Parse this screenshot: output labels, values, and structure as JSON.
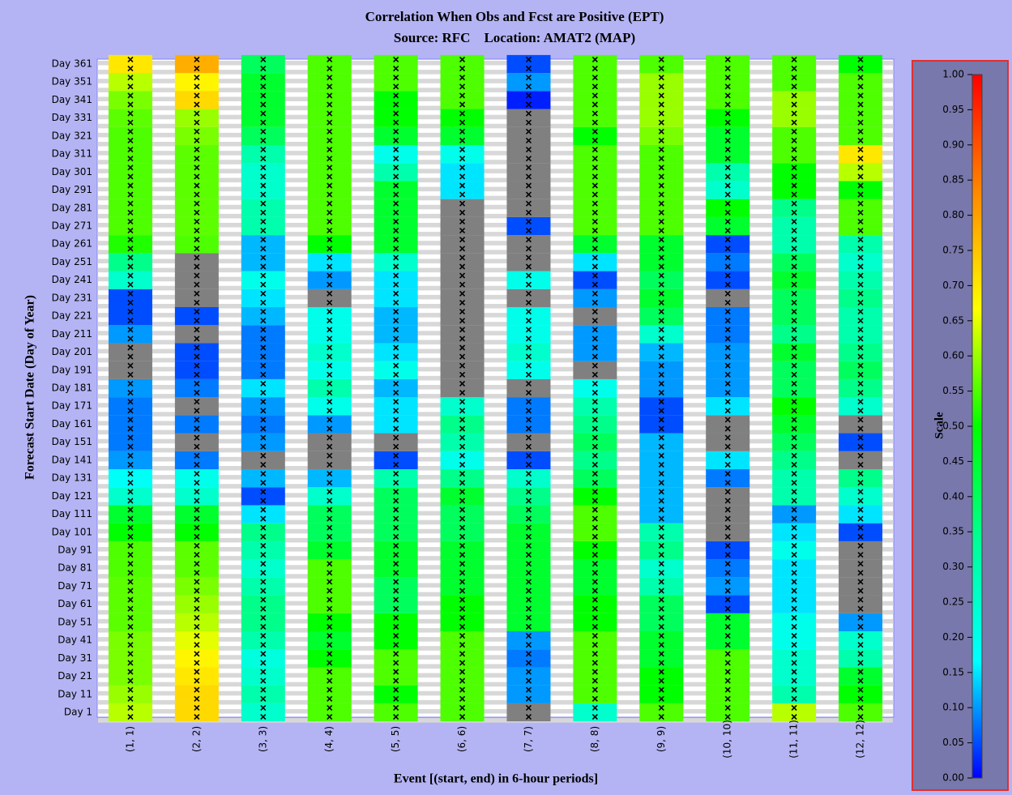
{
  "chart_data": {
    "type": "heatmap",
    "title": "Correlation When Obs and Fcst are Positive (EPT)",
    "subtitle": "Source: RFC    Location: AMAT2 (MAP)",
    "x_label": "Event [(start, end) in 6-hour periods]",
    "y_label": "Forecast Start Date (Day of Year)",
    "colorbar_label": "Scale",
    "x_categories": [
      "(1, 1)",
      "(2, 2)",
      "(3, 3)",
      "(4, 4)",
      "(5, 5)",
      "(6, 6)",
      "(7, 7)",
      "(8, 8)",
      "(9, 9)",
      "(10, 10)",
      "(11, 11)",
      "(12, 12)"
    ],
    "y_categories": [
      "Day 1",
      "Day 11",
      "Day 21",
      "Day 31",
      "Day 41",
      "Day 51",
      "Day 61",
      "Day 71",
      "Day 81",
      "Day 91",
      "Day 101",
      "Day 111",
      "Day 121",
      "Day 131",
      "Day 141",
      "Day 151",
      "Day 161",
      "Day 171",
      "Day 181",
      "Day 191",
      "Day 201",
      "Day 211",
      "Day 221",
      "Day 231",
      "Day 241",
      "Day 251",
      "Day 261",
      "Day 271",
      "Day 281",
      "Day 291",
      "Day 301",
      "Day 311",
      "Day 321",
      "Day 331",
      "Day 341",
      "Day 351",
      "Day 361"
    ],
    "values": [
      [
        0.62,
        0.6,
        0.58,
        0.58,
        0.58,
        0.56,
        0.56,
        0.56,
        0.55,
        0.55,
        0.5,
        0.45,
        0.25,
        0.18,
        0.1,
        0.08,
        0.08,
        0.08,
        0.1,
        null,
        null,
        0.1,
        0.05,
        0.05,
        0.25,
        0.35,
        0.52,
        0.55,
        0.55,
        0.55,
        0.55,
        0.55,
        0.55,
        0.56,
        0.58,
        0.62,
        0.7
      ],
      [
        0.72,
        0.72,
        0.7,
        0.68,
        0.65,
        0.62,
        0.6,
        0.58,
        0.56,
        0.56,
        0.5,
        0.45,
        0.25,
        0.2,
        0.08,
        null,
        0.08,
        null,
        0.08,
        0.05,
        0.05,
        null,
        0.05,
        null,
        null,
        null,
        0.55,
        0.56,
        0.56,
        0.56,
        0.56,
        0.56,
        0.58,
        0.6,
        0.72,
        0.68,
        0.78
      ],
      [
        0.25,
        0.3,
        0.25,
        0.22,
        0.3,
        0.35,
        0.35,
        0.3,
        0.25,
        0.3,
        0.35,
        0.15,
        0.05,
        0.12,
        null,
        0.1,
        0.08,
        0.1,
        0.15,
        0.08,
        0.08,
        0.08,
        0.12,
        0.15,
        0.2,
        0.12,
        0.12,
        0.3,
        0.3,
        0.25,
        0.25,
        0.3,
        0.4,
        0.45,
        0.45,
        0.45,
        0.4
      ],
      [
        0.55,
        0.55,
        0.55,
        0.5,
        0.45,
        0.5,
        0.55,
        0.55,
        0.55,
        0.45,
        0.4,
        0.4,
        0.25,
        0.12,
        null,
        null,
        0.1,
        0.2,
        0.3,
        0.2,
        0.25,
        0.2,
        0.2,
        null,
        0.1,
        0.15,
        0.5,
        0.55,
        0.55,
        0.55,
        0.55,
        0.55,
        0.55,
        0.55,
        0.55,
        0.55,
        0.55
      ],
      [
        0.55,
        0.5,
        0.55,
        0.55,
        0.5,
        0.5,
        0.4,
        0.4,
        0.45,
        0.45,
        0.4,
        0.4,
        0.4,
        0.3,
        0.05,
        null,
        0.15,
        0.15,
        0.12,
        0.2,
        0.15,
        0.12,
        0.12,
        0.15,
        0.15,
        0.25,
        0.45,
        0.45,
        0.45,
        0.45,
        0.3,
        0.2,
        0.45,
        0.5,
        0.5,
        0.55,
        0.55
      ],
      [
        0.55,
        0.55,
        0.55,
        0.55,
        0.55,
        0.5,
        0.5,
        0.45,
        0.45,
        0.45,
        0.4,
        0.4,
        0.45,
        0.35,
        0.2,
        0.3,
        0.35,
        0.25,
        null,
        null,
        null,
        null,
        null,
        null,
        null,
        null,
        null,
        null,
        null,
        0.15,
        0.15,
        0.2,
        0.45,
        0.5,
        0.55,
        0.55,
        0.55
      ],
      [
        null,
        0.1,
        0.1,
        0.08,
        0.1,
        0.45,
        0.45,
        0.45,
        0.45,
        0.45,
        0.45,
        0.4,
        0.35,
        0.25,
        0.05,
        null,
        0.08,
        0.08,
        null,
        0.2,
        0.25,
        0.2,
        0.2,
        null,
        0.2,
        null,
        null,
        0.05,
        null,
        null,
        null,
        null,
        null,
        null,
        0.02,
        0.1,
        0.05
      ],
      [
        0.25,
        0.55,
        0.55,
        0.55,
        0.55,
        0.5,
        0.5,
        0.45,
        0.45,
        0.5,
        0.55,
        0.55,
        0.5,
        0.4,
        0.35,
        0.4,
        0.35,
        0.3,
        0.2,
        null,
        0.1,
        0.1,
        null,
        0.1,
        0.05,
        0.15,
        0.45,
        0.55,
        0.55,
        0.55,
        0.55,
        0.55,
        0.5,
        0.55,
        0.55,
        0.55,
        0.55
      ],
      [
        0.55,
        0.5,
        0.5,
        0.45,
        0.45,
        0.4,
        0.4,
        0.3,
        0.25,
        0.35,
        0.3,
        0.12,
        0.12,
        0.12,
        0.12,
        0.12,
        0.05,
        0.05,
        0.1,
        0.1,
        0.12,
        0.25,
        0.4,
        0.45,
        0.4,
        0.45,
        0.45,
        0.55,
        0.55,
        0.55,
        0.55,
        0.55,
        0.58,
        0.6,
        0.6,
        0.6,
        0.55
      ],
      [
        0.55,
        0.55,
        0.55,
        0.55,
        0.45,
        0.45,
        0.05,
        0.1,
        0.08,
        0.05,
        null,
        null,
        null,
        0.08,
        0.15,
        null,
        null,
        0.15,
        0.1,
        0.1,
        0.1,
        0.08,
        0.08,
        null,
        0.05,
        0.08,
        0.05,
        0.45,
        0.5,
        0.25,
        0.3,
        0.45,
        0.45,
        0.5,
        0.55,
        0.55,
        0.55
      ],
      [
        0.62,
        0.3,
        0.25,
        0.25,
        0.2,
        0.2,
        0.15,
        0.15,
        0.15,
        0.2,
        0.15,
        0.1,
        0.3,
        0.3,
        0.35,
        0.4,
        0.45,
        0.5,
        0.4,
        0.4,
        0.45,
        0.35,
        0.4,
        0.4,
        0.45,
        0.4,
        0.3,
        0.3,
        0.35,
        0.5,
        0.5,
        0.55,
        0.55,
        0.6,
        0.6,
        0.55,
        0.55
      ],
      [
        0.55,
        0.5,
        0.45,
        0.3,
        0.25,
        0.1,
        null,
        null,
        null,
        null,
        0.05,
        0.15,
        0.25,
        0.35,
        null,
        0.05,
        null,
        0.25,
        0.35,
        0.4,
        0.35,
        0.3,
        0.3,
        0.35,
        0.3,
        0.25,
        0.3,
        0.55,
        0.55,
        0.5,
        0.62,
        0.7,
        0.55,
        0.55,
        0.55,
        0.55,
        0.5
      ]
    ],
    "missing_color": "#808080",
    "colormap": [
      "#0000ff",
      "#00ffff",
      "#00ff99",
      "#00ff00",
      "#ffff00",
      "#ff8800",
      "#ff0000"
    ],
    "clim": [
      0,
      1
    ],
    "cticks": [
      {
        "value": 0,
        "label": "0.00"
      },
      {
        "value": 0.05,
        "label": "0.05"
      },
      {
        "value": 0.1,
        "label": "0.10"
      },
      {
        "value": 0.15,
        "label": "0.15"
      },
      {
        "value": 0.2,
        "label": "0.20"
      },
      {
        "value": 0.25,
        "label": "0.25"
      },
      {
        "value": 0.3,
        "label": "0.30"
      },
      {
        "value": 0.35,
        "label": "0.35"
      },
      {
        "value": 0.4,
        "label": "0.40"
      },
      {
        "value": 0.45,
        "label": "0.45"
      },
      {
        "value": 0.5,
        "label": "0.50"
      },
      {
        "value": 0.55,
        "label": "0.55"
      },
      {
        "value": 0.6,
        "label": "0.60"
      },
      {
        "value": 0.65,
        "label": "0.65"
      },
      {
        "value": 0.7,
        "label": "0.70"
      },
      {
        "value": 0.75,
        "label": "0.75"
      },
      {
        "value": 0.8,
        "label": "0.80"
      },
      {
        "value": 0.85,
        "label": "0.85"
      },
      {
        "value": 0.9,
        "label": "0.90"
      },
      {
        "value": 0.95,
        "label": "0.95"
      },
      {
        "value": 1,
        "label": "1.00"
      }
    ]
  }
}
